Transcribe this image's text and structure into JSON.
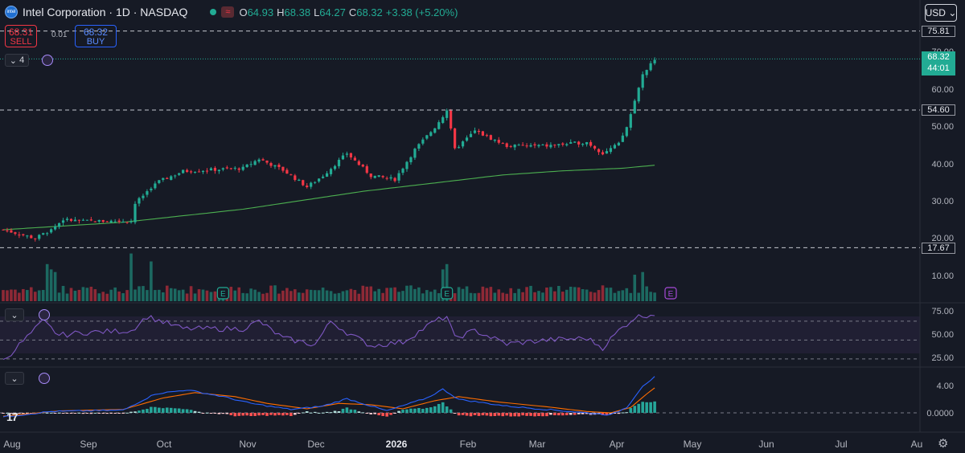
{
  "header": {
    "logo_text": "intel",
    "symbol_title": "Intel Corporation · 1D · NASDAQ",
    "open_label": "O",
    "open": "64.93",
    "high_label": "H",
    "high": "68.38",
    "low_label": "L",
    "low": "64.27",
    "close_label": "C",
    "close": "68.32",
    "change": "+3.38 (+5.20%)",
    "wave_symbol": "≈"
  },
  "trade": {
    "sell_price": "68.31",
    "sell_label": "SELL",
    "buy_price": "68.32",
    "buy_label": "BUY",
    "spread": "0.01"
  },
  "indicator_count": "4",
  "currency": "USD",
  "price_axis": {
    "ticks": [
      "70.00",
      "60.00",
      "50.00",
      "40.00",
      "30.00",
      "20.00",
      "10.00"
    ],
    "level_labels": [
      "75.81",
      "54.60",
      "17.67"
    ],
    "current_price": "68.32",
    "countdown": "44:01"
  },
  "rsi_axis": {
    "ticks": [
      "75.00",
      "50.00",
      "25.00"
    ]
  },
  "macd_axis": {
    "ticks": [
      "4.00",
      "0.0000"
    ]
  },
  "time_axis": {
    "labels": [
      "Aug",
      "Sep",
      "Oct",
      "Nov",
      "Dec",
      "2026",
      "Feb",
      "Mar",
      "Apr",
      "May",
      "Jun",
      "Jul",
      "Au"
    ]
  },
  "earnings_marker": "E",
  "branding": "17",
  "colors": {
    "up": "#22ab94",
    "down": "#f23645",
    "ma": "#4caf50",
    "rsi": "#7e57c2",
    "macd": "#2962ff",
    "signal": "#ff6d00"
  },
  "chart_data": {
    "type": "candlestick",
    "title": "Intel Corporation · 1D · NASDAQ",
    "price_levels": [
      75.81,
      54.6,
      17.67
    ],
    "ylim_price": [
      0,
      80
    ],
    "anchors": [
      {
        "i": 0,
        "p": 22.5
      },
      {
        "i": 8,
        "p": 20.2
      },
      {
        "i": 12,
        "p": 22.5
      },
      {
        "i": 15,
        "p": 25.2
      },
      {
        "i": 20,
        "p": 24.8
      },
      {
        "i": 32,
        "p": 24.8
      },
      {
        "i": 33,
        "p": 29.5
      },
      {
        "i": 38,
        "p": 35
      },
      {
        "i": 45,
        "p": 38.2
      },
      {
        "i": 60,
        "p": 39
      },
      {
        "i": 64,
        "p": 41.5
      },
      {
        "i": 70,
        "p": 38.5
      },
      {
        "i": 76,
        "p": 34
      },
      {
        "i": 80,
        "p": 37
      },
      {
        "i": 86,
        "p": 43
      },
      {
        "i": 92,
        "p": 37
      },
      {
        "i": 98,
        "p": 36
      },
      {
        "i": 103,
        "p": 44
      },
      {
        "i": 108,
        "p": 50
      },
      {
        "i": 111,
        "p": 54.5
      },
      {
        "i": 113,
        "p": 44
      },
      {
        "i": 118,
        "p": 49
      },
      {
        "i": 126,
        "p": 45
      },
      {
        "i": 136,
        "p": 45
      },
      {
        "i": 146,
        "p": 46
      },
      {
        "i": 150,
        "p": 43
      },
      {
        "i": 154,
        "p": 45.5
      },
      {
        "i": 156,
        "p": 50
      },
      {
        "i": 158,
        "p": 57
      },
      {
        "i": 160,
        "p": 64
      },
      {
        "i": 163,
        "p": 68.32
      }
    ],
    "ma_points": [
      [
        0,
        22.5
      ],
      [
        30,
        24.5
      ],
      [
        60,
        28
      ],
      [
        90,
        32.8
      ],
      [
        110,
        35.3
      ],
      [
        125,
        37.2
      ],
      [
        140,
        38.3
      ],
      [
        155,
        39
      ],
      [
        163,
        39.8
      ]
    ],
    "volume_spikes": [
      [
        11,
        14
      ],
      [
        12,
        12
      ],
      [
        13,
        11
      ],
      [
        32,
        18
      ],
      [
        37,
        15
      ],
      [
        111,
        14
      ],
      [
        110,
        12
      ],
      [
        160,
        11
      ],
      [
        158,
        10
      ]
    ],
    "rsi_levels": [
      70,
      50,
      30
    ],
    "rsi_anchors": [
      [
        0,
        28
      ],
      [
        10,
        70
      ],
      [
        14,
        55
      ],
      [
        20,
        58
      ],
      [
        32,
        60
      ],
      [
        36,
        75
      ],
      [
        45,
        62
      ],
      [
        60,
        62
      ],
      [
        64,
        70
      ],
      [
        70,
        52
      ],
      [
        78,
        45
      ],
      [
        82,
        70
      ],
      [
        86,
        58
      ],
      [
        92,
        44
      ],
      [
        100,
        48
      ],
      [
        108,
        70
      ],
      [
        111,
        75
      ],
      [
        113,
        52
      ],
      [
        118,
        60
      ],
      [
        126,
        46
      ],
      [
        136,
        50
      ],
      [
        146,
        52
      ],
      [
        150,
        42
      ],
      [
        154,
        60
      ],
      [
        158,
        74
      ],
      [
        163,
        78
      ]
    ],
    "macd_anchors": [
      [
        0,
        -0.6
      ],
      [
        12,
        0.2
      ],
      [
        30,
        0.4
      ],
      [
        38,
        2.8
      ],
      [
        46,
        3.4
      ],
      [
        55,
        2.4
      ],
      [
        62,
        1.4
      ],
      [
        72,
        0.5
      ],
      [
        80,
        1
      ],
      [
        86,
        2.1
      ],
      [
        96,
        0.3
      ],
      [
        106,
        2.2
      ],
      [
        110,
        3.5
      ],
      [
        114,
        2
      ],
      [
        126,
        1
      ],
      [
        136,
        0.5
      ],
      [
        146,
        0
      ],
      [
        152,
        -0.3
      ],
      [
        156,
        0.8
      ],
      [
        160,
        4
      ],
      [
        163,
        5.3
      ]
    ],
    "signal_anchors": [
      [
        0,
        -0.5
      ],
      [
        14,
        0.3
      ],
      [
        30,
        0.5
      ],
      [
        40,
        2.2
      ],
      [
        48,
        3
      ],
      [
        58,
        2.4
      ],
      [
        66,
        1.4
      ],
      [
        76,
        0.6
      ],
      [
        84,
        1.4
      ],
      [
        92,
        1.2
      ],
      [
        100,
        0.6
      ],
      [
        108,
        1.8
      ],
      [
        114,
        2.4
      ],
      [
        124,
        1.6
      ],
      [
        136,
        0.9
      ],
      [
        146,
        0.2
      ],
      [
        152,
        0
      ],
      [
        157,
        0.8
      ],
      [
        161,
        2.8
      ],
      [
        163,
        3.7
      ]
    ],
    "n": 164
  }
}
